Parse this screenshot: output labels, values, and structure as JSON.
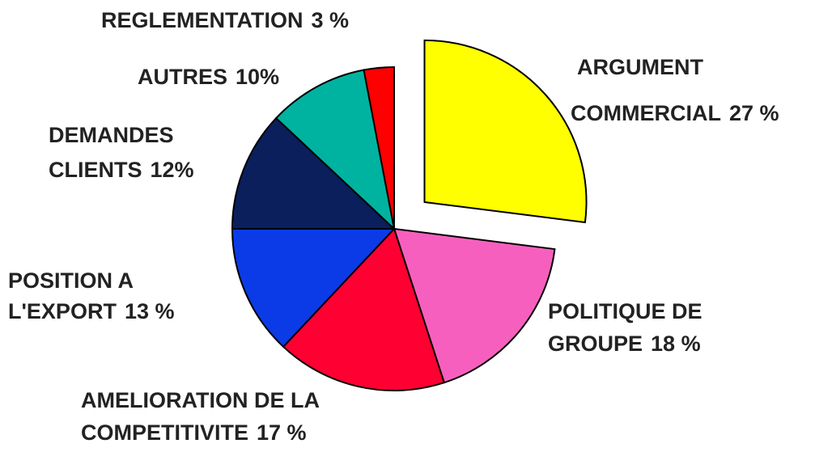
{
  "chart_data": {
    "type": "pie",
    "categories": [
      [
        "ARGUMENT",
        "COMMERCIAL"
      ],
      [
        "POLITIQUE DE",
        "GROUPE"
      ],
      [
        "AMELIORATION DE LA",
        "COMPETITIVITE"
      ],
      [
        "POSITION A",
        "L'EXPORT"
      ],
      [
        "DEMANDES",
        "CLIENTS"
      ],
      [
        "AUTRES"
      ],
      [
        "REGLEMENTATION"
      ]
    ],
    "values": [
      27,
      18,
      17,
      13,
      12,
      10,
      3
    ],
    "value_labels": [
      "27 %",
      "18 %",
      "17 %",
      "13 %",
      "12%",
      "10%",
      "3 %"
    ],
    "colors": [
      "#ffff00",
      "#f75fbf",
      "#ff0033",
      "#0a3be6",
      "#0a1f5c",
      "#00b3a0",
      "#ff0000"
    ],
    "exploded": [
      0
    ]
  }
}
